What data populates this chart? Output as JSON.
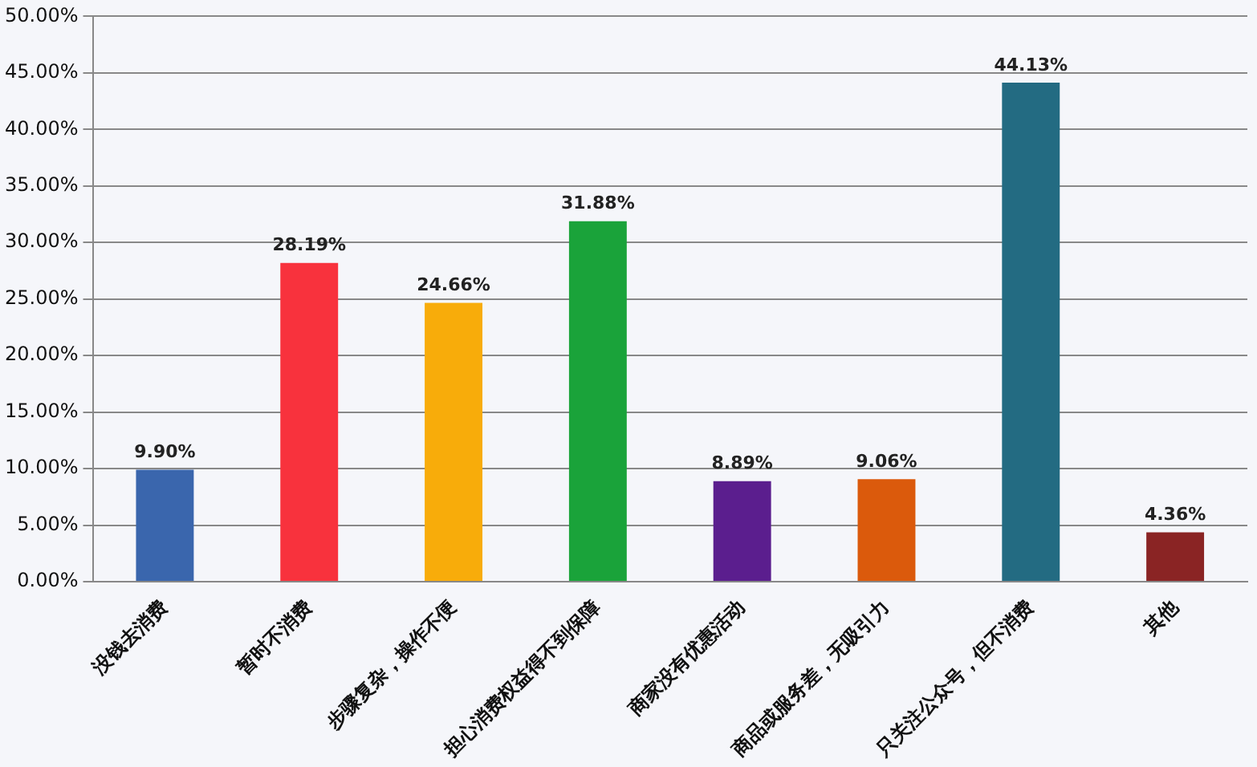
{
  "chart_data": {
    "type": "bar",
    "categories": [
      "没钱去消费",
      "暂时不消费",
      "步骤复杂，操作不便",
      "担心消费权益得不到保障",
      "商家没有优惠活动",
      "商品或服务差，无吸引力",
      "只关注公众号，但不消费",
      "其他"
    ],
    "values": [
      9.9,
      28.19,
      24.66,
      31.88,
      8.89,
      9.06,
      44.13,
      4.36
    ],
    "value_labels": [
      "9.90%",
      "28.19%",
      "24.66%",
      "31.88%",
      "8.89%",
      "9.06%",
      "44.13%",
      "4.36%"
    ],
    "colors": [
      "#3a66ad",
      "#f8323d",
      "#f8ac0a",
      "#1aa33a",
      "#5b1e8e",
      "#db5a0c",
      "#236b82",
      "#8a2424"
    ],
    "ylim": [
      0,
      50
    ],
    "yticks": [
      {
        "value": 0,
        "label": "0.00%"
      },
      {
        "value": 5,
        "label": "5.00%"
      },
      {
        "value": 10,
        "label": "10.00%"
      },
      {
        "value": 15,
        "label": "15.00%"
      },
      {
        "value": 20,
        "label": "20.00%"
      },
      {
        "value": 25,
        "label": "25.00%"
      },
      {
        "value": 30,
        "label": "30.00%"
      },
      {
        "value": 35,
        "label": "35.00%"
      },
      {
        "value": 40,
        "label": "40.00%"
      },
      {
        "value": 45,
        "label": "45.00%"
      },
      {
        "value": 50,
        "label": "50.00%"
      }
    ],
    "grid": "y",
    "legend": false
  }
}
